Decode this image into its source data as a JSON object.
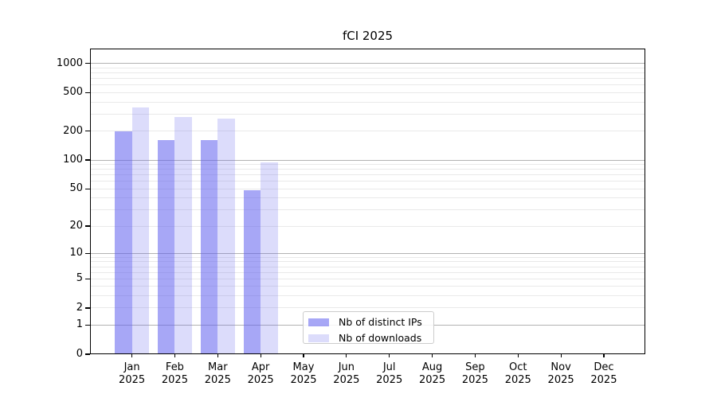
{
  "chart_data": {
    "type": "bar",
    "title": "fCI 2025",
    "categories": [
      "Jan",
      "Feb",
      "Mar",
      "Apr",
      "May",
      "Jun",
      "Jul",
      "Aug",
      "Sep",
      "Oct",
      "Nov",
      "Dec"
    ],
    "category_year": "2025",
    "series": [
      {
        "name": "Nb of distinct IPs",
        "color": "#5f5fef",
        "opacity": 0.55,
        "swatch_hex": "#a8a8f6",
        "values": [
          200,
          160,
          160,
          48,
          null,
          null,
          null,
          null,
          null,
          null,
          null,
          null
        ]
      },
      {
        "name": "Nb of downloads",
        "color": "#5f5fef",
        "opacity": 0.22,
        "swatch_hex": "#dcdcfa",
        "values": [
          350,
          280,
          270,
          95,
          null,
          null,
          null,
          null,
          null,
          null,
          null,
          null
        ]
      }
    ],
    "y_ticks": [
      1000,
      500,
      200,
      100,
      50,
      20,
      10,
      5,
      2,
      1,
      0
    ],
    "y_scale": "log1p",
    "ylim": [
      0,
      1430
    ],
    "grid": {
      "major_values": [
        1,
        10,
        100,
        1000
      ],
      "major_color": "#b2b2b2",
      "minor_color": "#e9e9e9"
    },
    "legend_position": "lower center"
  }
}
